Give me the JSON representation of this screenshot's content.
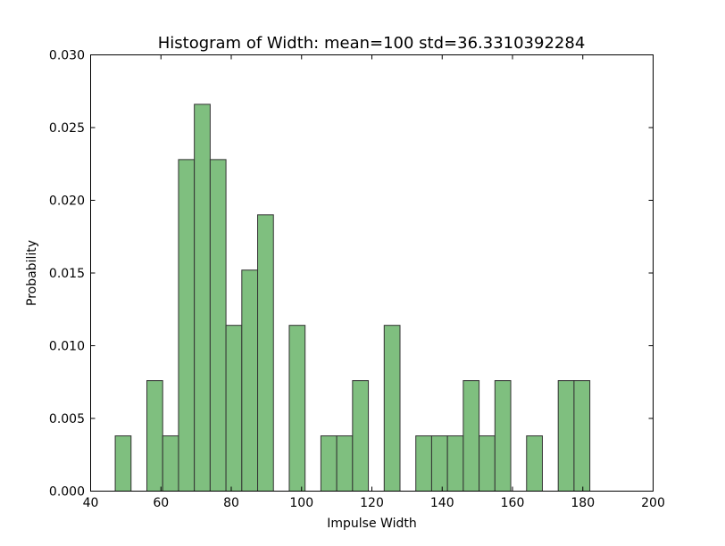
{
  "chart_data": {
    "type": "bar",
    "title": "Histogram of Width: mean=100 std=36.3310392284",
    "xlabel": "Impulse Width",
    "ylabel": "Probability",
    "xlim": [
      40,
      200
    ],
    "ylim": [
      0,
      0.03
    ],
    "xticks": [
      "40",
      "60",
      "80",
      "100",
      "120",
      "140",
      "160",
      "180",
      "200"
    ],
    "yticks": [
      "0.000",
      "0.005",
      "0.010",
      "0.015",
      "0.020",
      "0.025",
      "0.030"
    ],
    "grid": false,
    "bin_width": 4.5,
    "bins": [
      {
        "x0": 47.0,
        "value": 0.0038
      },
      {
        "x0": 56.0,
        "value": 0.0076
      },
      {
        "x0": 60.5,
        "value": 0.0038
      },
      {
        "x0": 65.0,
        "value": 0.0228
      },
      {
        "x0": 69.5,
        "value": 0.0266
      },
      {
        "x0": 74.0,
        "value": 0.0228
      },
      {
        "x0": 78.5,
        "value": 0.0114
      },
      {
        "x0": 83.0,
        "value": 0.0152
      },
      {
        "x0": 87.5,
        "value": 0.019
      },
      {
        "x0": 96.5,
        "value": 0.0114
      },
      {
        "x0": 105.5,
        "value": 0.0038
      },
      {
        "x0": 110.0,
        "value": 0.0038
      },
      {
        "x0": 114.5,
        "value": 0.0076
      },
      {
        "x0": 123.5,
        "value": 0.0114
      },
      {
        "x0": 132.5,
        "value": 0.0038
      },
      {
        "x0": 137.0,
        "value": 0.0038
      },
      {
        "x0": 141.5,
        "value": 0.0038
      },
      {
        "x0": 146.0,
        "value": 0.0076
      },
      {
        "x0": 150.5,
        "value": 0.0038
      },
      {
        "x0": 155.0,
        "value": 0.0076
      },
      {
        "x0": 164.0,
        "value": 0.0038
      },
      {
        "x0": 173.0,
        "value": 0.0076
      },
      {
        "x0": 177.5,
        "value": 0.0076
      }
    ],
    "colors": {
      "bar_fill": "#7fbf7f",
      "bar_edge": "#333333"
    }
  }
}
